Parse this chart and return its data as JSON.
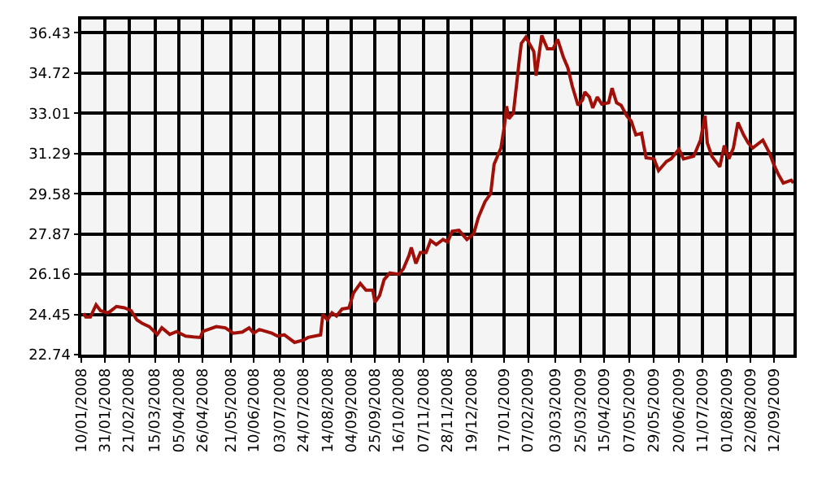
{
  "chart_data": {
    "type": "line",
    "grid": true,
    "marker": "none",
    "line_style": "solid",
    "x": [
      "2008-01-12",
      "2008-01-14",
      "2008-01-18",
      "2008-01-23",
      "2008-01-27",
      "2008-02-02",
      "2008-02-04",
      "2008-02-10",
      "2008-02-17",
      "2008-02-23",
      "2008-02-28",
      "2008-03-04",
      "2008-03-10",
      "2008-03-17",
      "2008-03-21",
      "2008-03-28",
      "2008-04-03",
      "2008-04-11",
      "2008-04-18",
      "2008-04-24",
      "2008-04-26",
      "2008-05-08",
      "2008-05-16",
      "2008-05-23",
      "2008-05-31",
      "2008-06-06",
      "2008-06-10",
      "2008-06-15",
      "2008-06-26",
      "2008-07-01",
      "2008-07-07",
      "2008-07-16",
      "2008-07-24",
      "2008-07-28",
      "2008-08-08",
      "2008-08-10",
      "2008-08-14",
      "2008-08-18",
      "2008-08-22",
      "2008-08-27",
      "2008-09-02",
      "2008-09-06",
      "2008-09-12",
      "2008-09-17",
      "2008-09-23",
      "2008-09-25",
      "2008-09-29",
      "2008-10-03",
      "2008-10-08",
      "2008-10-16",
      "2008-10-20",
      "2008-10-25",
      "2008-10-27",
      "2008-10-31",
      "2008-11-04",
      "2008-11-09",
      "2008-11-13",
      "2008-11-18",
      "2008-11-24",
      "2008-11-28",
      "2008-12-02",
      "2008-12-08",
      "2008-12-15",
      "2008-12-21",
      "2008-12-25",
      "2008-12-31",
      "2009-01-05",
      "2009-01-08",
      "2009-01-14",
      "2009-01-17",
      "2009-01-19",
      "2009-01-21",
      "2009-01-25",
      "2009-01-30",
      "2009-02-01",
      "2009-02-05",
      "2009-02-12",
      "2009-02-14",
      "2009-02-19",
      "2009-02-24",
      "2009-03-01",
      "2009-03-05",
      "2009-03-10",
      "2009-03-14",
      "2009-03-18",
      "2009-03-23",
      "2009-03-27",
      "2009-03-29",
      "2009-04-02",
      "2009-04-05",
      "2009-04-09",
      "2009-04-13",
      "2009-04-19",
      "2009-04-22",
      "2009-04-26",
      "2009-04-30",
      "2009-05-05",
      "2009-05-09",
      "2009-05-13",
      "2009-05-18",
      "2009-05-22",
      "2009-05-29",
      "2009-06-02",
      "2009-06-09",
      "2009-06-13",
      "2009-06-20",
      "2009-06-24",
      "2009-07-03",
      "2009-07-09",
      "2009-07-13",
      "2009-07-15",
      "2009-07-19",
      "2009-07-26",
      "2009-07-30",
      "2009-08-03",
      "2009-08-07",
      "2009-08-11",
      "2009-08-16",
      "2009-08-20",
      "2009-08-24",
      "2009-09-02",
      "2009-09-08",
      "2009-09-12",
      "2009-09-16",
      "2009-09-20",
      "2009-09-27",
      "2009-09-29"
    ],
    "series": [
      {
        "color": "#a01008",
        "values": [
          24.49,
          24.34,
          24.34,
          24.86,
          24.61,
          24.52,
          24.56,
          24.79,
          24.73,
          24.61,
          24.22,
          24.06,
          23.93,
          23.6,
          23.88,
          23.6,
          23.72,
          23.53,
          23.49,
          23.47,
          23.72,
          23.93,
          23.88,
          23.65,
          23.7,
          23.88,
          23.65,
          23.81,
          23.65,
          23.53,
          23.58,
          23.26,
          23.36,
          23.47,
          23.58,
          24.45,
          24.22,
          24.52,
          24.38,
          24.68,
          24.73,
          25.36,
          25.77,
          25.48,
          25.48,
          24.97,
          25.25,
          25.93,
          26.21,
          26.16,
          26.39,
          26.96,
          27.3,
          26.62,
          27.08,
          27.08,
          27.6,
          27.42,
          27.64,
          27.53,
          27.99,
          28.03,
          27.64,
          27.88,
          28.56,
          29.25,
          29.59,
          30.84,
          31.53,
          32.44,
          33.31,
          32.78,
          33.01,
          35.18,
          35.98,
          36.25,
          35.64,
          34.61,
          36.32,
          35.75,
          35.75,
          36.16,
          35.41,
          34.95,
          34.15,
          33.35,
          33.58,
          33.92,
          33.7,
          33.24,
          33.7,
          33.4,
          33.46,
          34.08,
          33.46,
          33.35,
          32.9,
          32.67,
          32.09,
          32.16,
          31.12,
          31.07,
          30.57,
          30.96,
          31.07,
          31.48,
          31.07,
          31.18,
          31.87,
          32.9,
          31.75,
          31.18,
          30.73,
          31.64,
          31.07,
          31.53,
          32.62,
          32.09,
          31.75,
          31.53,
          31.87,
          31.3,
          30.79,
          30.38,
          30.04,
          30.16,
          30.04
        ]
      }
    ],
    "xlim": [
      "2008-01-10",
      "2009-09-29"
    ],
    "ylim": [
      22.74,
      37.0
    ],
    "yticks": [
      22.74,
      24.45,
      26.16,
      27.87,
      29.58,
      31.29,
      33.01,
      34.72,
      36.43
    ],
    "xticks": [
      {
        "value": "2008-01-10",
        "label": "10/01/2008"
      },
      {
        "value": "2008-01-31",
        "label": "31/01/2008"
      },
      {
        "value": "2008-02-21",
        "label": "21/02/2008"
      },
      {
        "value": "2008-03-15",
        "label": "15/03/2008"
      },
      {
        "value": "2008-04-05",
        "label": "05/04/2008"
      },
      {
        "value": "2008-04-26",
        "label": "26/04/2008"
      },
      {
        "value": "2008-05-21",
        "label": "21/05/2008"
      },
      {
        "value": "2008-06-10",
        "label": "10/06/2008"
      },
      {
        "value": "2008-07-03",
        "label": "03/07/2008"
      },
      {
        "value": "2008-07-24",
        "label": "24/07/2008"
      },
      {
        "value": "2008-08-14",
        "label": "14/08/2008"
      },
      {
        "value": "2008-09-04",
        "label": "04/09/2008"
      },
      {
        "value": "2008-09-25",
        "label": "25/09/2008"
      },
      {
        "value": "2008-10-16",
        "label": "16/10/2008"
      },
      {
        "value": "2008-11-07",
        "label": "07/11/2008"
      },
      {
        "value": "2008-11-28",
        "label": "28/11/2008"
      },
      {
        "value": "2008-12-19",
        "label": "19/12/2008"
      },
      {
        "value": "2009-01-17",
        "label": "17/01/2009"
      },
      {
        "value": "2009-02-07",
        "label": "07/02/2009"
      },
      {
        "value": "2009-03-03",
        "label": "03/03/2009"
      },
      {
        "value": "2009-03-25",
        "label": "25/03/2009"
      },
      {
        "value": "2009-04-15",
        "label": "15/04/2009"
      },
      {
        "value": "2009-05-07",
        "label": "07/05/2009"
      },
      {
        "value": "2009-05-29",
        "label": "29/05/2009"
      },
      {
        "value": "2009-06-20",
        "label": "20/06/2009"
      },
      {
        "value": "2009-07-11",
        "label": "11/07/2009"
      },
      {
        "value": "2009-08-01",
        "label": "01/08/2009"
      },
      {
        "value": "2009-08-22",
        "label": "22/08/2009"
      },
      {
        "value": "2009-09-12",
        "label": "12/09/2009"
      }
    ]
  }
}
